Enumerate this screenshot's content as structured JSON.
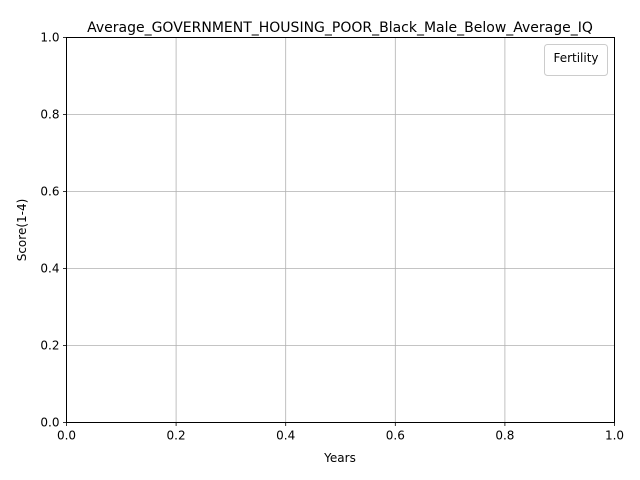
{
  "chart_data": {
    "type": "line",
    "title": "Average_GOVERNMENT_HOUSING_POOR_Black_Male_Below_Average_IQ",
    "xlabel": "Years",
    "ylabel": "Score(1-4)",
    "xlim": [
      0.0,
      1.0
    ],
    "ylim": [
      0.0,
      1.0
    ],
    "x_ticks": [
      "0.0",
      "0.2",
      "0.4",
      "0.6",
      "0.8",
      "1.0"
    ],
    "y_ticks": [
      "0.0",
      "0.2",
      "0.4",
      "0.6",
      "0.8",
      "1.0"
    ],
    "grid": true,
    "legend": {
      "title": "Fertility",
      "placement": "top-right",
      "entries": []
    },
    "series": []
  }
}
